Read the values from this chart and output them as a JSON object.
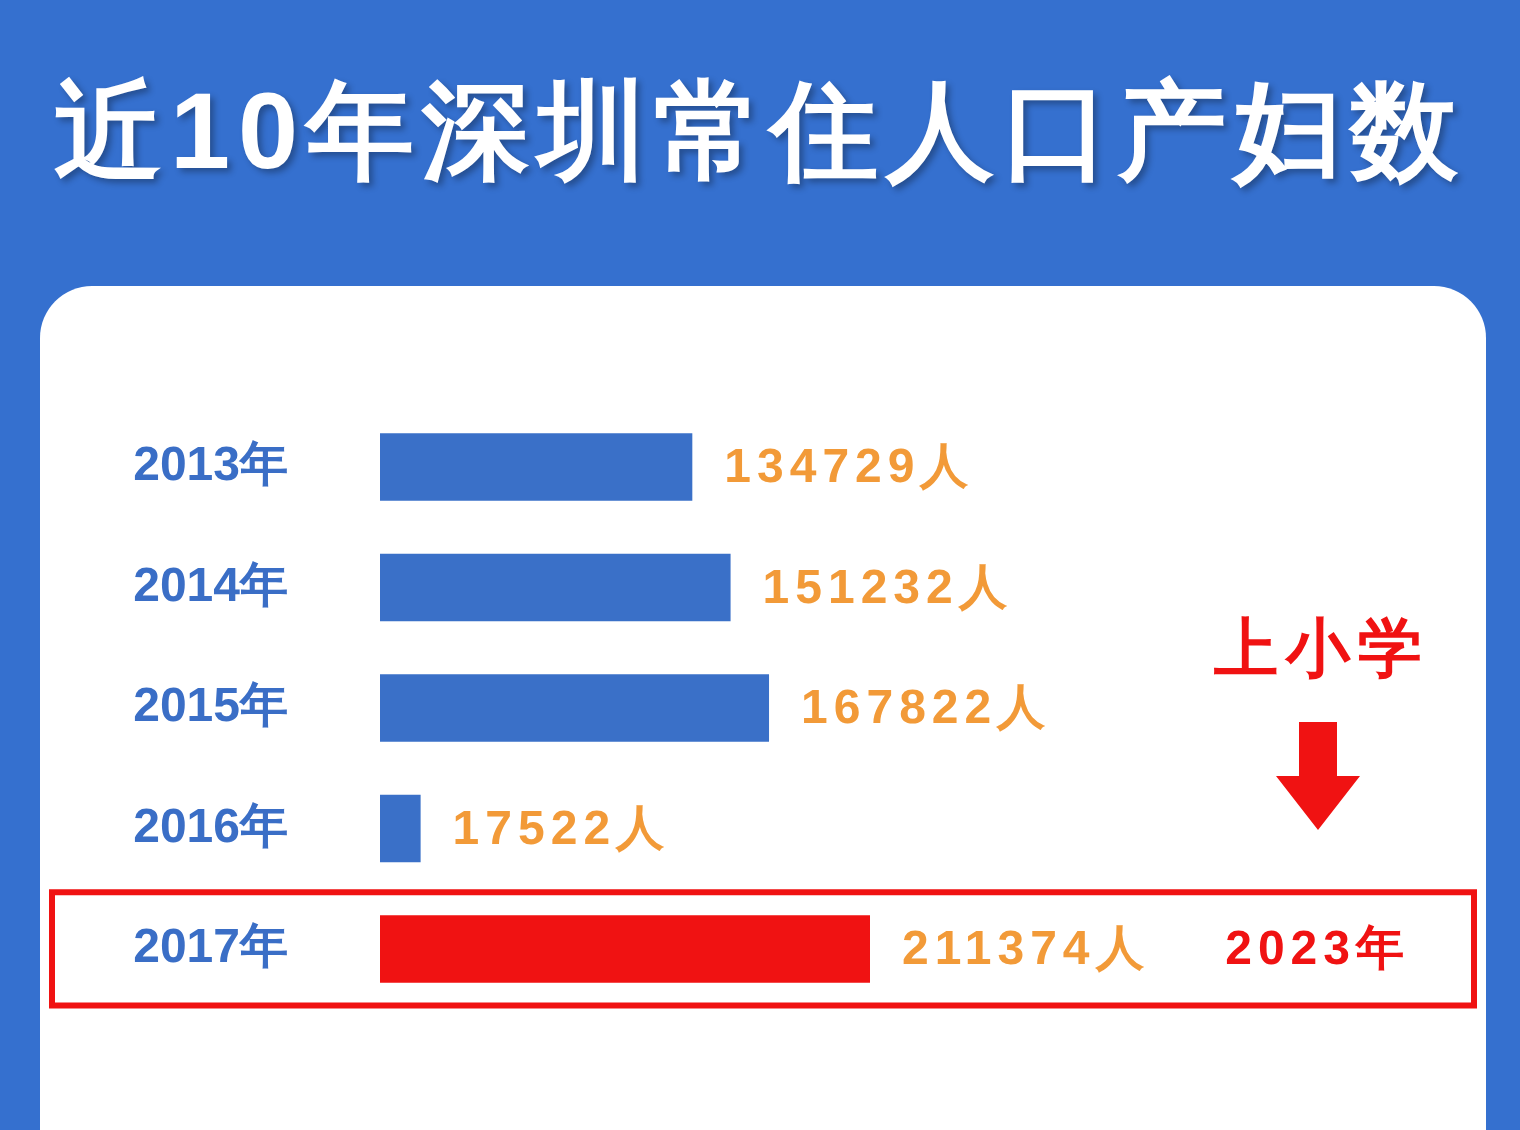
{
  "chart_data": {
    "type": "bar",
    "orientation": "horizontal",
    "title": "近10年深圳常住人口产妇数",
    "categories": [
      "2013年",
      "2014年",
      "2015年",
      "2016年",
      "2017年"
    ],
    "values": [
      134729,
      151232,
      167822,
      17522,
      211374
    ],
    "colors": [
      "#3a70c8",
      "#3a70c8",
      "#3a70c8",
      "#3a70c8",
      "#f01212"
    ],
    "value_labels": [
      "134729人",
      "151232人",
      "167822人",
      "17522人",
      "211374人"
    ],
    "annotations": [
      "2023年",
      "上小学"
    ],
    "legend": false,
    "grid": false,
    "tick_labels": "y"
  }
}
